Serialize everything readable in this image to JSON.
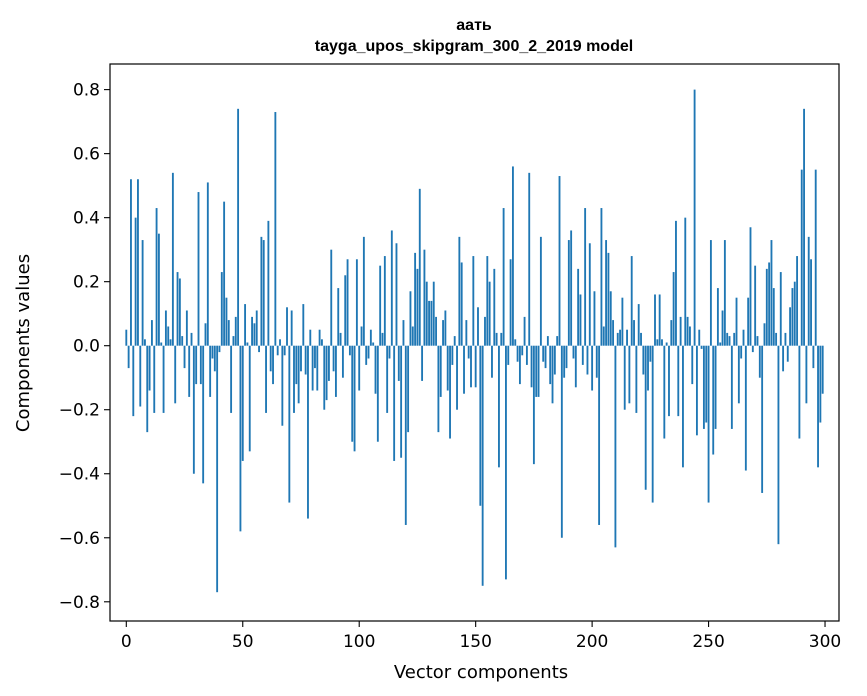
{
  "chart_data": {
    "type": "bar",
    "title": "аать",
    "subtitle": "tayga_upos_skipgram_300_2_2019 model",
    "xlabel": "Vector components",
    "ylabel": "Components values",
    "xlim": [
      -7,
      306
    ],
    "ylim": [
      -0.86,
      0.88
    ],
    "xticks": [
      0,
      50,
      100,
      150,
      200,
      250,
      300
    ],
    "yticks": [
      -0.8,
      -0.6,
      -0.4,
      -0.2,
      0.0,
      0.2,
      0.4,
      0.6,
      0.8
    ],
    "ytick_labels": [
      "−0.8",
      "−0.6",
      "−0.4",
      "−0.2",
      "0.0",
      "0.2",
      "0.4",
      "0.6",
      "0.8"
    ],
    "color": "#1f77b4",
    "categories_note": "component index 0..299",
    "values": [
      0.05,
      -0.07,
      0.52,
      -0.22,
      0.4,
      0.52,
      -0.19,
      0.33,
      0.02,
      -0.27,
      -0.14,
      0.08,
      -0.21,
      0.43,
      0.35,
      0.01,
      -0.21,
      0.11,
      0.06,
      0.02,
      0.54,
      -0.18,
      0.23,
      0.21,
      0.03,
      -0.07,
      0.11,
      -0.16,
      0.04,
      -0.4,
      -0.12,
      0.48,
      -0.12,
      -0.43,
      0.07,
      0.51,
      -0.16,
      -0.04,
      -0.08,
      -0.77,
      -0.02,
      0.23,
      0.45,
      0.15,
      0.08,
      -0.21,
      0.03,
      0.09,
      0.74,
      -0.58,
      -0.36,
      0.13,
      0.01,
      -0.33,
      0.09,
      0.07,
      0.11,
      -0.02,
      0.34,
      0.33,
      -0.21,
      0.39,
      -0.08,
      -0.12,
      0.73,
      -0.03,
      0.02,
      -0.25,
      -0.03,
      0.12,
      -0.49,
      0.11,
      -0.21,
      -0.12,
      -0.18,
      -0.08,
      0.13,
      -0.09,
      -0.54,
      0.05,
      -0.14,
      -0.07,
      -0.14,
      0.05,
      0.02,
      -0.2,
      -0.17,
      -0.11,
      0.3,
      -0.08,
      -0.16,
      0.18,
      0.04,
      -0.1,
      0.22,
      0.27,
      -0.03,
      -0.3,
      -0.33,
      0.27,
      -0.14,
      0.06,
      0.34,
      -0.06,
      -0.04,
      0.05,
      0.01,
      -0.15,
      -0.3,
      0.25,
      0.04,
      0.28,
      -0.21,
      -0.04,
      0.36,
      -0.36,
      0.32,
      -0.11,
      -0.35,
      0.08,
      -0.56,
      -0.27,
      0.17,
      0.06,
      0.29,
      0.24,
      0.49,
      -0.11,
      0.3,
      0.2,
      0.14,
      0.14,
      0.2,
      0.09,
      -0.27,
      -0.16,
      0.08,
      0.11,
      -0.14,
      -0.29,
      -0.06,
      0.03,
      -0.2,
      0.34,
      0.26,
      -0.15,
      0.08,
      -0.04,
      -0.13,
      0.28,
      -0.13,
      0.12,
      -0.5,
      -0.75,
      0.09,
      0.28,
      0.2,
      -0.1,
      0.24,
      0.04,
      -0.38,
      0.04,
      0.43,
      -0.73,
      -0.06,
      0.27,
      0.56,
      0.02,
      -0.05,
      -0.12,
      -0.03,
      0.09,
      -0.06,
      0.54,
      -0.13,
      -0.37,
      -0.16,
      -0.16,
      0.34,
      -0.05,
      -0.07,
      0.03,
      -0.12,
      -0.18,
      -0.09,
      0.03,
      0.53,
      -0.6,
      -0.1,
      -0.07,
      0.33,
      0.36,
      -0.04,
      -0.13,
      0.24,
      0.16,
      -0.06,
      0.43,
      -0.09,
      0.32,
      -0.14,
      0.17,
      -0.1,
      -0.56,
      0.43,
      0.06,
      0.33,
      0.29,
      0.17,
      0.08,
      -0.63,
      0.04,
      0.05,
      0.15,
      -0.2,
      0.05,
      -0.18,
      0.28,
      0.08,
      -0.21,
      0.13,
      0.04,
      -0.09,
      -0.45,
      -0.14,
      -0.05,
      -0.49,
      0.16,
      0.02,
      0.16,
      0.02,
      -0.29,
      0.01,
      -0.22,
      0.08,
      0.23,
      0.39,
      -0.22,
      0.09,
      -0.38,
      0.4,
      0.09,
      0.06,
      -0.12,
      0.8,
      -0.28,
      0.05,
      -0.01,
      -0.26,
      -0.24,
      -0.49,
      0.33,
      -0.34,
      -0.26,
      0.18,
      0.01,
      0.11,
      0.33,
      0.04,
      0.03,
      -0.26,
      0.04,
      0.15,
      -0.18,
      -0.04,
      0.05,
      -0.39,
      0.15,
      0.37,
      -0.02,
      0.25,
      0.03,
      -0.1,
      -0.46,
      0.07,
      0.24,
      0.26,
      0.33,
      0.18,
      0.04,
      -0.62,
      0.23,
      -0.08,
      0.04,
      -0.05,
      0.12,
      0.18,
      0.2,
      0.28,
      -0.29,
      0.55,
      0.74,
      -0.18,
      0.34,
      0.27,
      -0.07,
      0.55,
      -0.38,
      -0.24,
      -0.15
    ]
  }
}
